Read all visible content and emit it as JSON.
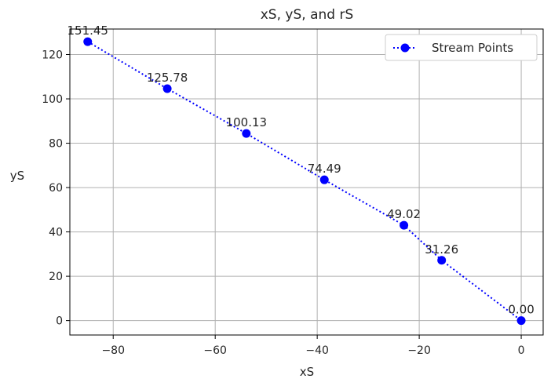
{
  "chart_data": {
    "type": "line",
    "title": "xS, yS, and rS",
    "xlabel": "xS",
    "ylabel": "yS",
    "xlim": [
      -88.5,
      4.3
    ],
    "ylim": [
      -6.5,
      131.5
    ],
    "xticks": [
      -80,
      -60,
      -40,
      -20,
      0
    ],
    "yticks": [
      0,
      20,
      40,
      60,
      80,
      100,
      120
    ],
    "xtick_labels": [
      "−80",
      "−60",
      "−40",
      "−20",
      "0"
    ],
    "ytick_labels": [
      "0",
      "20",
      "40",
      "60",
      "80",
      "100",
      "120"
    ],
    "grid": true,
    "legend_position": "top-right",
    "colors": {
      "series": "#0000ff",
      "grid": "#b0b0b0",
      "axis": "#000000"
    },
    "series": [
      {
        "name": "Stream Points",
        "marker": "circle",
        "linestyle": "dotted",
        "x": [
          -85.0,
          -69.4,
          -53.9,
          -38.6,
          -23.0,
          -15.6,
          0.0
        ],
        "y": [
          125.8,
          104.6,
          84.4,
          63.5,
          43.0,
          27.2,
          0.0
        ],
        "labels": [
          "151.45",
          "125.78",
          "100.13",
          "74.49",
          "49.02",
          "31.26",
          "0.00"
        ]
      }
    ]
  }
}
